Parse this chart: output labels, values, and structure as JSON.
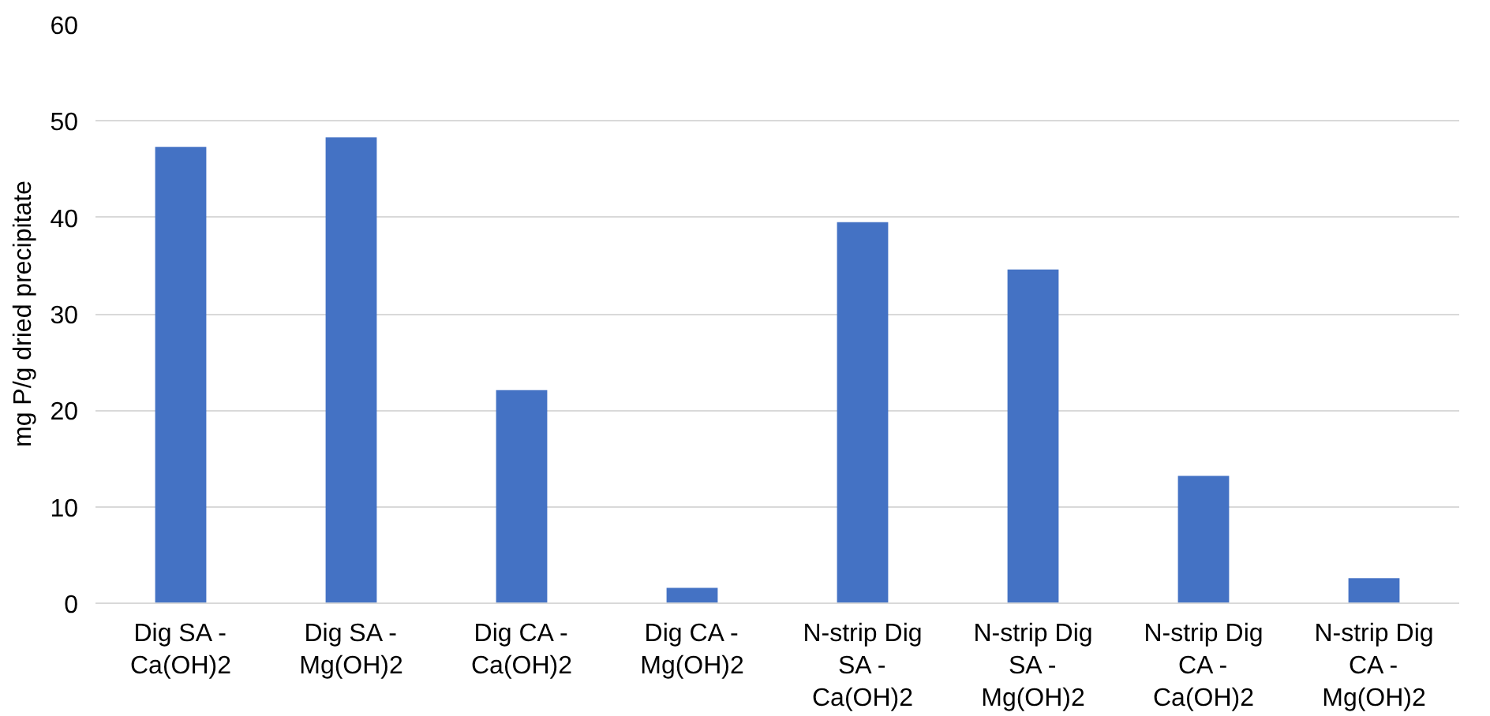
{
  "chart_data": {
    "type": "bar",
    "ylabel": "mg P/g dried precipitate",
    "categories": [
      "Dig SA - Ca(OH)2",
      "Dig SA - Mg(OH)2",
      "Dig CA - Ca(OH)2",
      "Dig CA - Mg(OH)2",
      "N-strip Dig SA - Ca(OH)2",
      "N-strip Dig SA - Mg(OH)2",
      "N-strip Dig CA - Ca(OH)2",
      "N-strip Dig CA - Mg(OH)2"
    ],
    "values": [
      47.3,
      48.3,
      22.1,
      1.6,
      39.5,
      34.6,
      13.2,
      2.6
    ],
    "color": "#4472c4",
    "ylim": [
      0,
      60
    ],
    "yticks": [
      0,
      10,
      20,
      30,
      40,
      50,
      60
    ],
    "grid": "y"
  }
}
